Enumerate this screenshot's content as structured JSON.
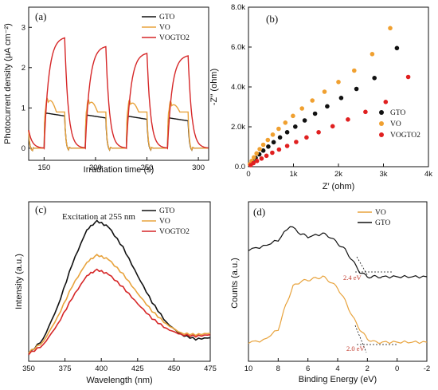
{
  "chart_data": [
    {
      "type": "line",
      "panel_label": "(a)",
      "xlabel": "Irradiation time (s)",
      "ylabel": "Photocurrent density (μA cm⁻²)",
      "xlim": [
        135,
        310
      ],
      "ylim": [
        -0.3,
        3.5
      ],
      "xticks": [
        "150",
        "200",
        "250",
        "300"
      ],
      "yticks": [
        "0",
        "1",
        "2",
        "3"
      ],
      "legend_position": "top-right",
      "series": [
        {
          "name": "GTO",
          "color": "#111111",
          "on_current": [
            0.88,
            0.83,
            0.8,
            0.76
          ],
          "dark_current": 0.0
        },
        {
          "name": "VO",
          "color": "#e8a33d",
          "on_peak": [
            1.18,
            1.14,
            1.12,
            1.08
          ],
          "on_steady": 0.9,
          "dark_current": 0.0
        },
        {
          "name": "VOGTO2",
          "color": "#d62728",
          "on_peak": [
            2.77,
            2.55,
            2.38,
            2.32
          ],
          "dark_current": 0.0
        }
      ],
      "light_on_intervals": [
        [
          150,
          170
        ],
        [
          190,
          210
        ],
        [
          230,
          250
        ],
        [
          270,
          290
        ]
      ]
    },
    {
      "type": "scatter",
      "panel_label": "(b)",
      "xlabel": "Z′ (ohm)",
      "ylabel": "-Z′′ (ohm)",
      "xlim": [
        0,
        4000
      ],
      "ylim": [
        0,
        8000
      ],
      "xticks": [
        "0",
        "1k",
        "2k",
        "3k",
        "4k"
      ],
      "yticks": [
        "0.0",
        "2.0k",
        "4.0k",
        "6.0k",
        "8.0k"
      ],
      "legend_position": "center-right",
      "series": [
        {
          "name": "GTO",
          "color": "#111111",
          "x": [
            40,
            90,
            160,
            240,
            330,
            440,
            560,
            700,
            860,
            1040,
            1250,
            1480,
            1750,
            2060,
            2400,
            2800,
            3300
          ],
          "y": [
            120,
            270,
            440,
            620,
            810,
            1010,
            1230,
            1470,
            1730,
            2010,
            2320,
            2660,
            3030,
            3450,
            3900,
            4450,
            5950
          ]
        },
        {
          "name": "VO",
          "color": "#f0a030",
          "x": [
            30,
            70,
            120,
            180,
            250,
            330,
            430,
            540,
            670,
            820,
            990,
            1190,
            1420,
            1690,
            2000,
            2350,
            2750,
            3150
          ],
          "y": [
            130,
            290,
            470,
            670,
            880,
            1100,
            1340,
            1610,
            1900,
            2210,
            2550,
            2920,
            3320,
            3760,
            4250,
            4820,
            5650,
            6950
          ]
        },
        {
          "name": "VOGTO2",
          "color": "#e02020",
          "x": [
            50,
            110,
            190,
            290,
            400,
            530,
            680,
            860,
            1060,
            1290,
            1560,
            1870,
            2210,
            2600,
            3050,
            3550
          ],
          "y": [
            80,
            180,
            290,
            410,
            550,
            700,
            860,
            1040,
            1240,
            1470,
            1730,
            2030,
            2370,
            2750,
            3250,
            4500
          ]
        }
      ]
    },
    {
      "type": "line",
      "panel_label": "(c)",
      "annotation": "Excitation at 255 nm",
      "xlabel": "Wavelength (nm)",
      "ylabel": "Intensity (a.u.)",
      "xlim": [
        350,
        475
      ],
      "ylim": [
        0,
        1
      ],
      "xticks": [
        "350",
        "375",
        "400",
        "425",
        "450",
        "475"
      ],
      "legend_position": "top-right",
      "series": [
        {
          "name": "GTO",
          "color": "#111111",
          "x": [
            350,
            360,
            370,
            380,
            390,
            397,
            405,
            415,
            425,
            435,
            445,
            455,
            465,
            475
          ],
          "y": [
            0.02,
            0.12,
            0.34,
            0.63,
            0.86,
            0.92,
            0.88,
            0.74,
            0.55,
            0.37,
            0.23,
            0.15,
            0.12,
            0.13
          ]
        },
        {
          "name": "VO",
          "color": "#e8a33d",
          "x": [
            350,
            360,
            370,
            380,
            390,
            397,
            405,
            415,
            425,
            435,
            445,
            455,
            465,
            475
          ],
          "y": [
            0.03,
            0.1,
            0.27,
            0.48,
            0.64,
            0.69,
            0.66,
            0.56,
            0.43,
            0.31,
            0.22,
            0.16,
            0.15,
            0.16
          ]
        },
        {
          "name": "VOGTO2",
          "color": "#d62728",
          "x": [
            350,
            360,
            370,
            380,
            390,
            397,
            405,
            415,
            425,
            435,
            445,
            455,
            465,
            475
          ],
          "y": [
            0.02,
            0.08,
            0.22,
            0.4,
            0.55,
            0.59,
            0.56,
            0.47,
            0.36,
            0.26,
            0.19,
            0.15,
            0.14,
            0.15
          ]
        }
      ]
    },
    {
      "type": "line",
      "panel_label": "(d)",
      "xlabel": "Binding Energy (eV)",
      "ylabel": "Counts (a.u.)",
      "xlim": [
        10,
        -2
      ],
      "ylim": [
        0,
        1
      ],
      "xticks": [
        "10",
        "8",
        "6",
        "4",
        "2",
        "0",
        "-2"
      ],
      "legend_position": "top-right",
      "annotations": [
        "2.4 eV",
        "2.0 eV"
      ],
      "series": [
        {
          "name": "VO",
          "color": "#e8a33d",
          "x": [
            10,
            9,
            8,
            7.5,
            7,
            6.5,
            6,
            5.5,
            5,
            4.5,
            4,
            3.5,
            3,
            2.5,
            2,
            1.5,
            1,
            0,
            -1,
            -2
          ],
          "y": [
            0.12,
            0.13,
            0.2,
            0.35,
            0.47,
            0.5,
            0.51,
            0.52,
            0.53,
            0.5,
            0.46,
            0.38,
            0.28,
            0.2,
            0.14,
            0.12,
            0.12,
            0.12,
            0.12,
            0.12
          ]
        },
        {
          "name": "GTO",
          "color": "#111111",
          "x": [
            10,
            9,
            8,
            7.2,
            6.5,
            6,
            5,
            4.5,
            4,
            3.5,
            3,
            2.5,
            2,
            1.5,
            1,
            0,
            -1,
            -2
          ],
          "y": [
            0.7,
            0.72,
            0.76,
            0.85,
            0.8,
            0.78,
            0.8,
            0.78,
            0.74,
            0.7,
            0.63,
            0.56,
            0.53,
            0.53,
            0.53,
            0.53,
            0.53,
            0.53
          ]
        }
      ]
    }
  ]
}
